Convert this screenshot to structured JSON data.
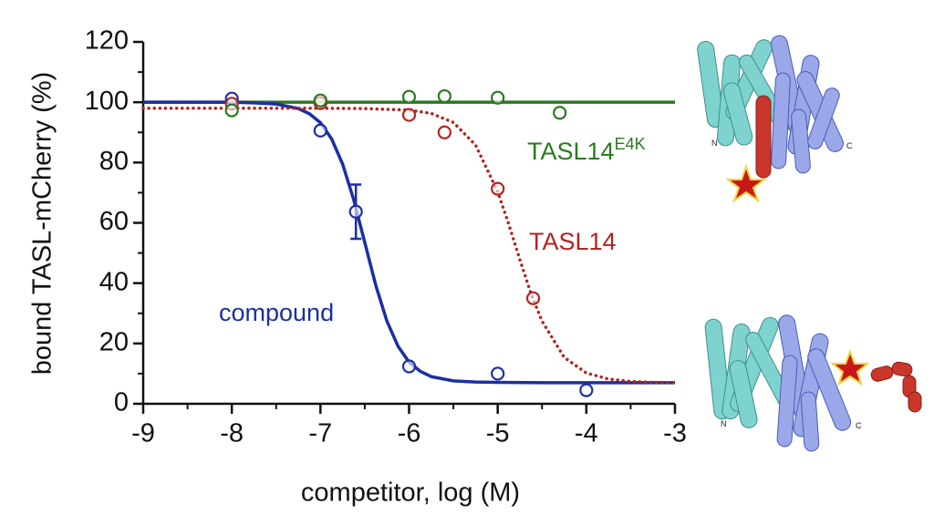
{
  "chart_data": {
    "type": "scatter",
    "x_label": "competitor, log (M)",
    "y_label": "bound TASL-mCherry (%)",
    "xlim": [
      -9,
      -3
    ],
    "xticks": [
      -9,
      -8,
      -7,
      -6,
      -5,
      -4,
      -3
    ],
    "xminorticks": [
      -8.5,
      -7.5,
      -6.5,
      -5.5,
      -4.5,
      -3.5
    ],
    "ylim": [
      0,
      120
    ],
    "yticks": [
      0,
      20,
      40,
      60,
      80,
      100,
      120
    ],
    "yminorticks": [
      10,
      30,
      50,
      70,
      90,
      110
    ],
    "series": [
      {
        "name": "compound",
        "color": "#1b2fa3",
        "line_style": "solid",
        "x": [
          -8,
          -7,
          -6.6,
          -6,
          -5,
          -4
        ],
        "values": [
          101.2,
          90.6,
          63.7,
          12.4,
          10,
          4.5
        ],
        "errors": [
          null,
          null,
          9,
          null,
          null,
          null
        ],
        "fit": {
          "x": [
            -9,
            -8.5,
            -8,
            -7.75,
            -7.5,
            -7.25,
            -7.125,
            -7,
            -6.875,
            -6.75,
            -6.625,
            -6.5,
            -6.375,
            -6.25,
            -6.125,
            -6,
            -5.875,
            -5.75,
            -5.5,
            -5.25,
            -5,
            -4.5,
            -4,
            -3.5,
            -3
          ],
          "values": [
            100,
            100,
            100,
            99.8,
            99.4,
            97.9,
            96.2,
            93.2,
            87.9,
            79.5,
            67.7,
            53.5,
            39.2,
            27.4,
            19.1,
            13.8,
            10.8,
            9.0,
            7.6,
            7.2,
            7.1,
            7.0,
            7.0,
            7.0,
            7.0
          ]
        }
      },
      {
        "name": "TASL14",
        "color": "#b3231f",
        "line_style": "dotted",
        "x": [
          -8,
          -7,
          -6,
          -5.6,
          -5,
          -4.6
        ],
        "values": [
          99.5,
          99.7,
          95.8,
          90,
          71.3,
          35
        ],
        "fit": {
          "x": [
            -9,
            -8.5,
            -8,
            -7.5,
            -7,
            -6.5,
            -6,
            -5.75,
            -5.5,
            -5.25,
            -5,
            -4.875,
            -4.75,
            -4.625,
            -4.5,
            -4.25,
            -4,
            -3.75,
            -3.5,
            -3.25,
            -3
          ],
          "values": [
            98,
            98,
            98,
            98,
            98,
            97.9,
            97.4,
            96.3,
            93.3,
            85.8,
            70.3,
            59.5,
            47.8,
            36.6,
            27.4,
            15.4,
            10.2,
            8.2,
            7.4,
            7.1,
            7.0
          ]
        }
      },
      {
        "name": "TASL14",
        "name_superscript": "E4K",
        "color": "#2a7a1f",
        "line_style": "solid",
        "x": [
          -8,
          -7,
          -6,
          -5.6,
          -5,
          -4.3
        ],
        "values": [
          97.3,
          100.6,
          101.8,
          102,
          101.5,
          96.5
        ],
        "fit": {
          "x": [
            -9,
            -3
          ],
          "values": [
            100,
            100
          ]
        }
      }
    ]
  }
}
